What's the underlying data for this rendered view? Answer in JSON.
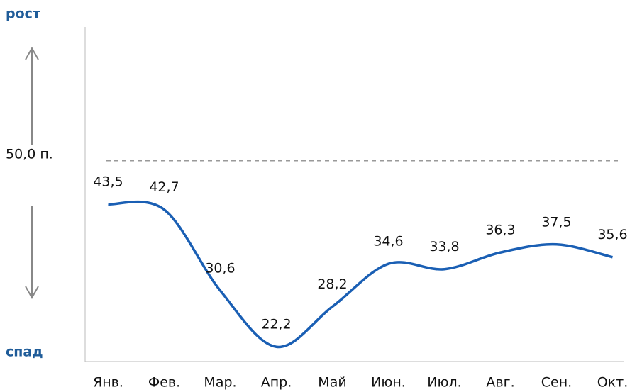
{
  "chart_data": {
    "type": "line",
    "top_label": "рост",
    "bottom_label": "спад",
    "categories": [
      "Янв.",
      "Фев.",
      "Мар.",
      "Апр.",
      "Май",
      "Июн.",
      "Июл.",
      "Авг.",
      "Сен.",
      "Окт."
    ],
    "values": [
      43.5,
      42.7,
      30.6,
      22.2,
      28.2,
      34.6,
      33.8,
      36.3,
      37.5,
      35.6
    ],
    "value_labels": [
      "43,5",
      "42,7",
      "30,6",
      "22,2",
      "28,2",
      "34,6",
      "33,8",
      "36,3",
      "37,5",
      "35,6"
    ],
    "color": "#1a5fb4",
    "ylim": [
      20,
      70
    ],
    "reference_line": {
      "value": 50,
      "label": "50,0 п."
    }
  }
}
